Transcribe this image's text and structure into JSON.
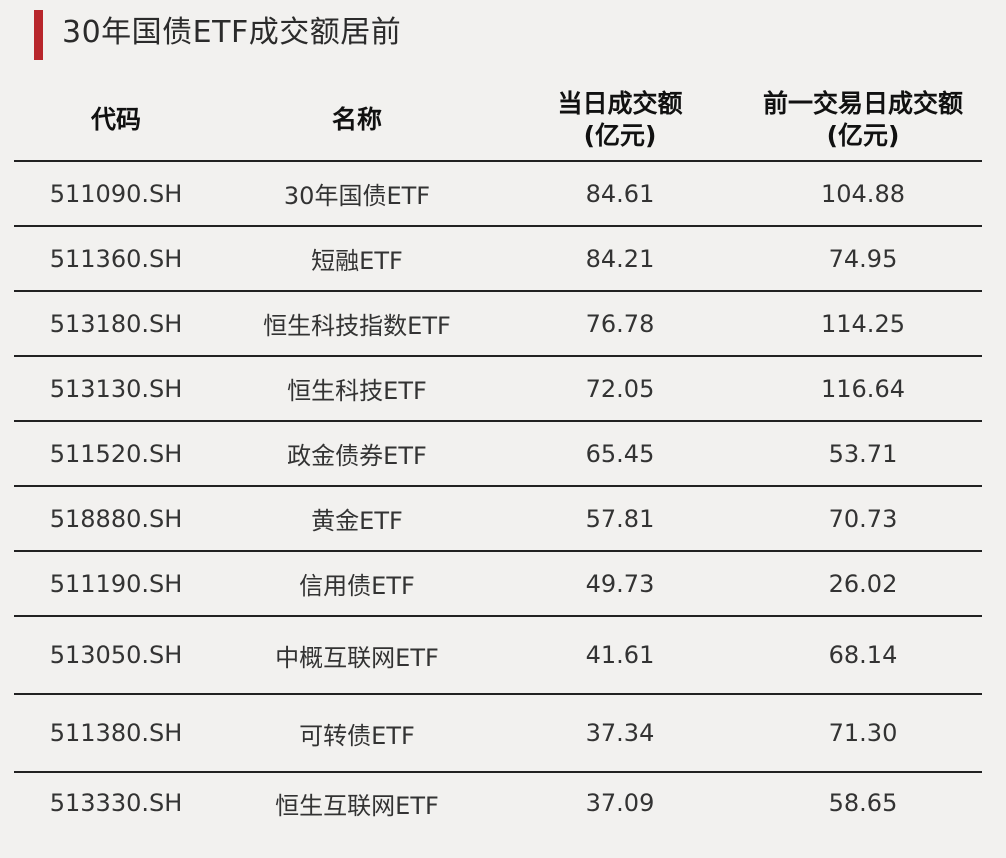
{
  "title": "30年国债ETF成交额居前",
  "accent_color": "#b8262b",
  "table": {
    "headers": {
      "code": "代码",
      "name": "名称",
      "today_line1": "当日成交额",
      "today_line2": "(亿元)",
      "prev_line1": "前一交易日成交额",
      "prev_line2": "(亿元)"
    },
    "rows": [
      {
        "code": "511090.SH",
        "name": "30年国债ETF",
        "today": "84.61",
        "prev": "104.88"
      },
      {
        "code": "511360.SH",
        "name": "短融ETF",
        "today": "84.21",
        "prev": "74.95"
      },
      {
        "code": "513180.SH",
        "name": "恒生科技指数ETF",
        "today": "76.78",
        "prev": "114.25"
      },
      {
        "code": "513130.SH",
        "name": "恒生科技ETF",
        "today": "72.05",
        "prev": "116.64"
      },
      {
        "code": "511520.SH",
        "name": "政金债券ETF",
        "today": "65.45",
        "prev": "53.71"
      },
      {
        "code": "518880.SH",
        "name": "黄金ETF",
        "today": "57.81",
        "prev": "70.73"
      },
      {
        "code": "511190.SH",
        "name": "信用债ETF",
        "today": "49.73",
        "prev": "26.02"
      },
      {
        "code": "513050.SH",
        "name": "中概互联网ETF",
        "today": "41.61",
        "prev": "68.14"
      },
      {
        "code": "511380.SH",
        "name": "可转债ETF",
        "today": "37.34",
        "prev": "71.30"
      },
      {
        "code": "513330.SH",
        "name": "恒生互联网ETF",
        "today": "37.09",
        "prev": "58.65"
      }
    ]
  }
}
